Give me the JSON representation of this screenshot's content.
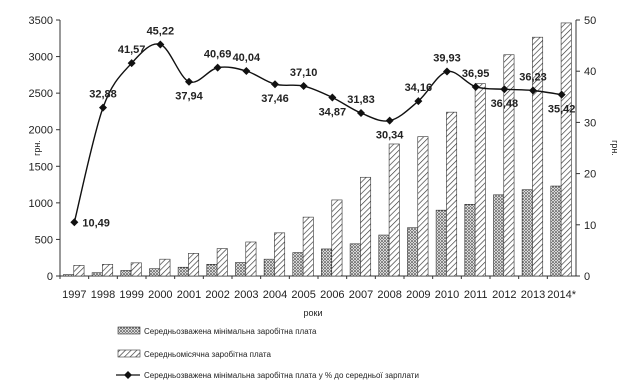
{
  "chart_data": {
    "type": "bar",
    "categories": [
      "1997",
      "1998",
      "1999",
      "2000",
      "2001",
      "2002",
      "2003",
      "2004",
      "2005",
      "2006",
      "2007",
      "2008",
      "2009",
      "2010",
      "2011",
      "2012",
      "2013",
      "2014*"
    ],
    "xlabel": "роки",
    "ylabel": "грн.",
    "ylabel_right": "грн.",
    "ylim": [
      0,
      3500
    ],
    "ylim_right": [
      0,
      50
    ],
    "yticks": [
      "0",
      "500",
      "1000",
      "1500",
      "2000",
      "2500",
      "3000",
      "3500"
    ],
    "yticks_right": [
      "0",
      "10",
      "20",
      "30",
      "40",
      "50"
    ],
    "grid": false,
    "legend_position": "bottom",
    "series": [
      {
        "name": "Середньозважена мінімальна заробітна плата",
        "type": "bar",
        "axis": "left",
        "pattern": "dotted",
        "values": [
          20,
          45,
          75,
          100,
          120,
          160,
          185,
          230,
          320,
          370,
          440,
          560,
          660,
          900,
          980,
          1110,
          1180,
          1230
        ]
      },
      {
        "name": "Середньомісячна заробітна плата",
        "type": "bar",
        "axis": "left",
        "pattern": "hatched",
        "values": [
          145,
          160,
          180,
          230,
          310,
          375,
          465,
          590,
          805,
          1040,
          1350,
          1805,
          1905,
          2240,
          2630,
          3025,
          3265,
          3460
        ]
      },
      {
        "name": "Середньозважена мінімальна заробітна плата у % до середньої зарплати",
        "type": "line",
        "axis": "right",
        "values": [
          10.49,
          32.88,
          41.57,
          45.22,
          37.94,
          40.69,
          40.04,
          37.46,
          37.1,
          34.87,
          31.83,
          30.34,
          34.16,
          39.93,
          36.95,
          36.48,
          36.23,
          35.42
        ],
        "labels": [
          "10,49",
          "32,88",
          "41,57",
          "45,22",
          "37,94",
          "40,69",
          "40,04",
          "37,46",
          "37,10",
          "34,87",
          "31,83",
          "30,34",
          "34,16",
          "39,93",
          "36,95",
          "36,48",
          "36,23",
          "35,42"
        ]
      }
    ]
  }
}
